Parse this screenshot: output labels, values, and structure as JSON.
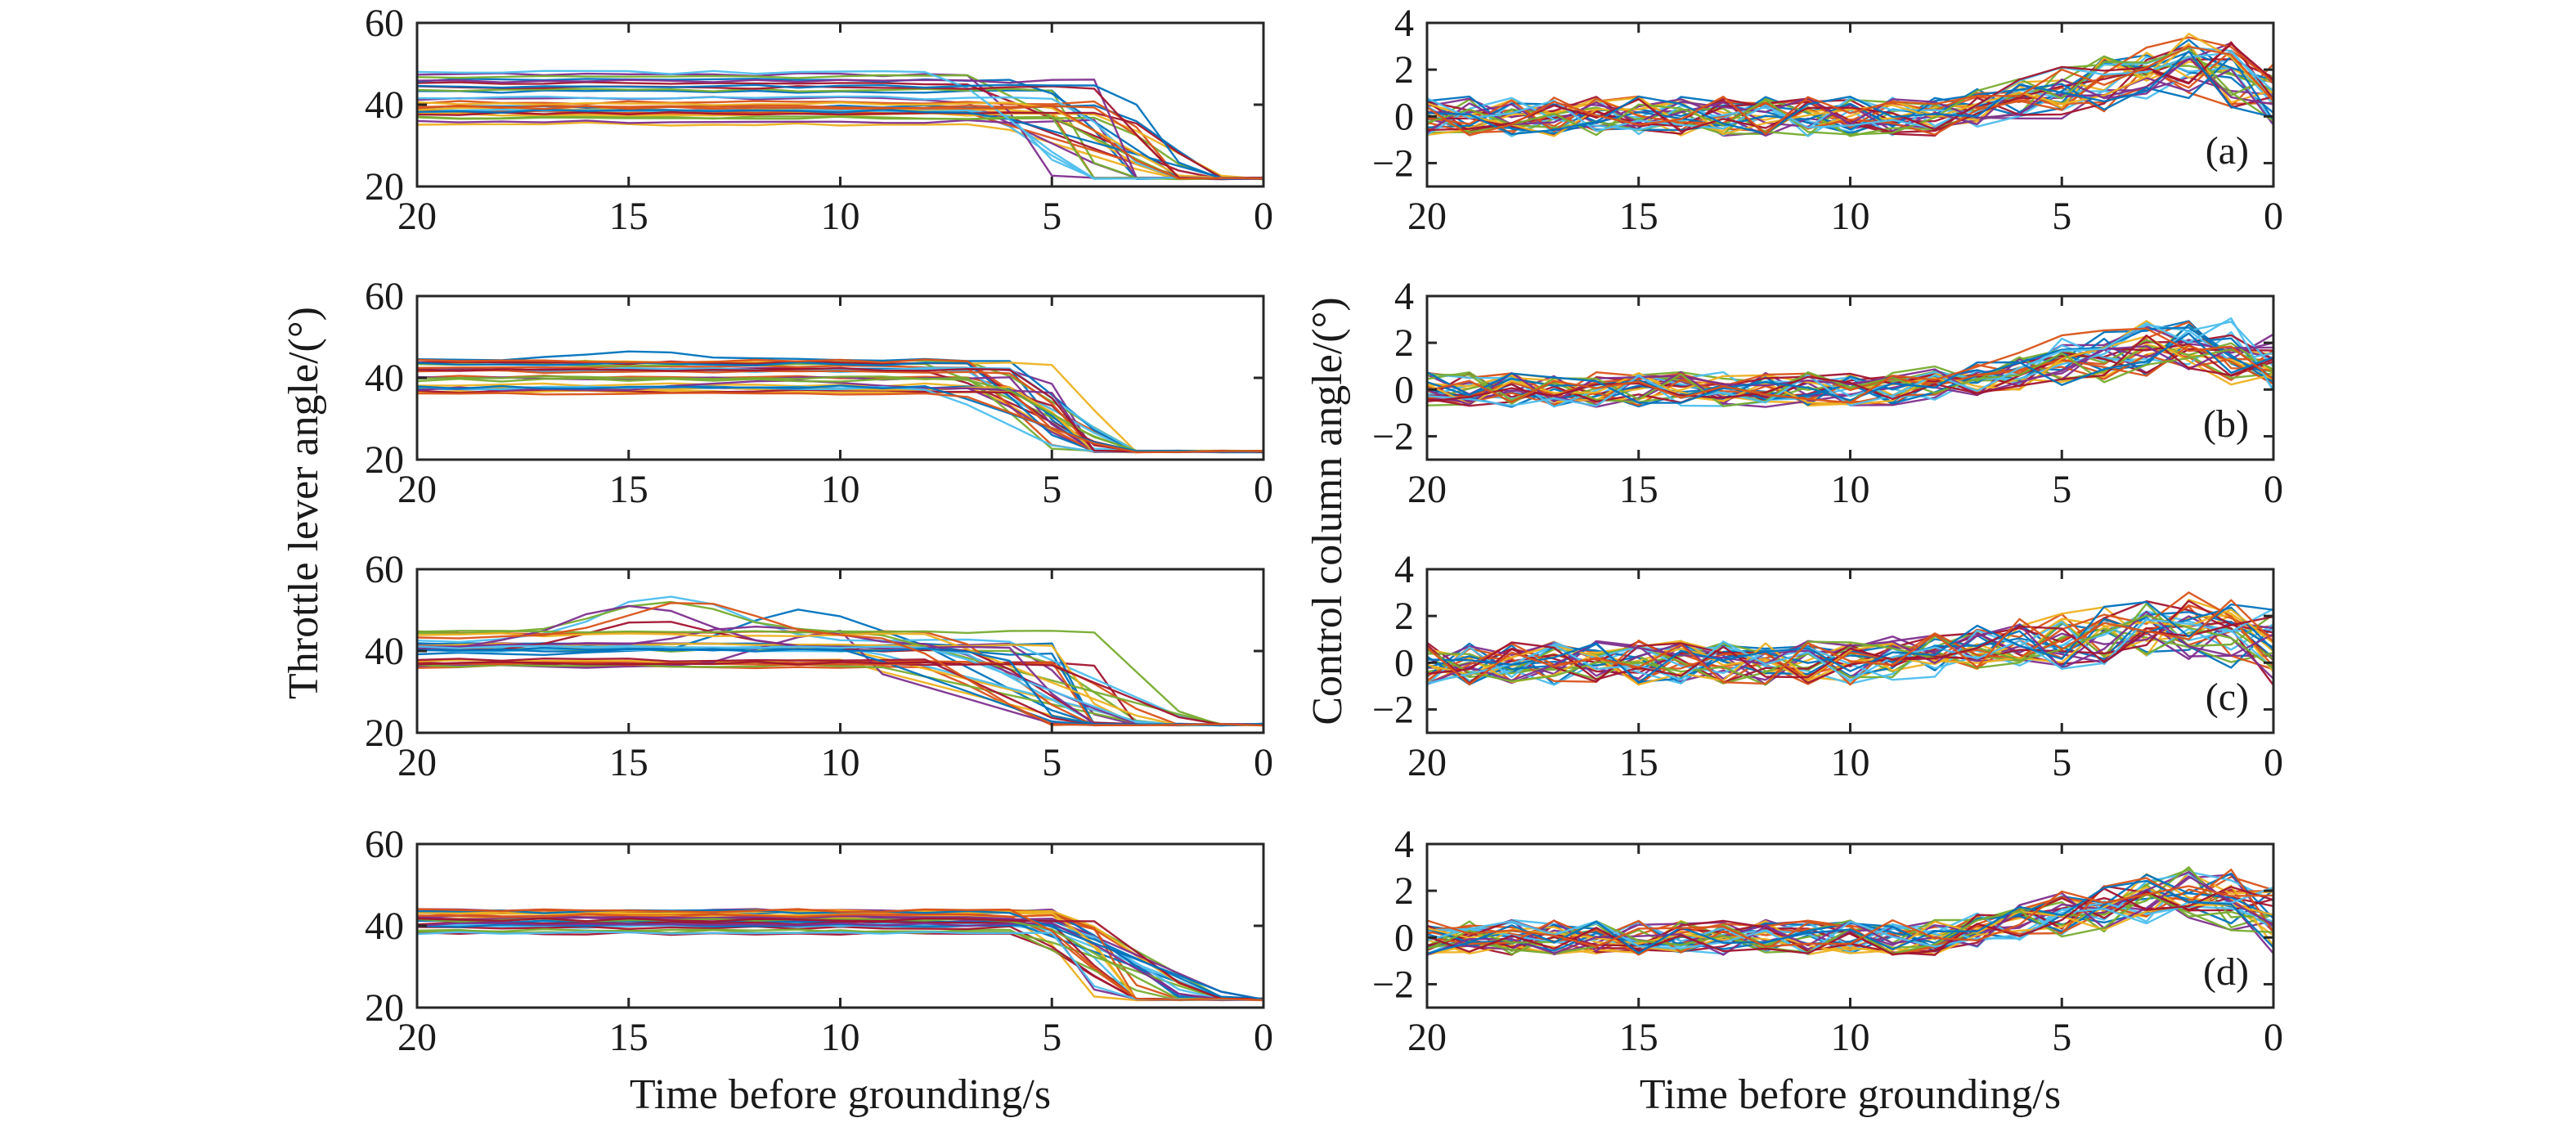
{
  "figure": {
    "left_ylabel": "Throttle lever angle/(°)",
    "right_ylabel": "Control column angle/(°)",
    "xlabel": "Time before grounding/s"
  },
  "chart_data": [
    {
      "id": "throttle-a",
      "type": "line",
      "xlim": [
        20,
        0
      ],
      "ylim": [
        20,
        60
      ],
      "xticks": [
        20,
        15,
        10,
        5,
        0
      ],
      "yticks": [
        20,
        40,
        60
      ],
      "n_series": 30,
      "baseline": [
        34,
        48
      ],
      "drop_start": [
        3,
        8
      ],
      "drop_end": [
        0.5,
        5
      ],
      "floor": 22,
      "bump_amp": 0,
      "panel_label": ""
    },
    {
      "id": "throttle-b",
      "type": "line",
      "xlim": [
        20,
        0
      ],
      "ylim": [
        20,
        60
      ],
      "xticks": [
        20,
        15,
        10,
        5,
        0
      ],
      "yticks": [
        20,
        40,
        60
      ],
      "n_series": 30,
      "baseline": [
        36,
        45
      ],
      "drop_start": [
        5,
        8
      ],
      "drop_end": [
        3,
        5
      ],
      "floor": 22,
      "bump_amp": 2,
      "panel_label": ""
    },
    {
      "id": "throttle-c",
      "type": "line",
      "xlim": [
        20,
        0
      ],
      "ylim": [
        20,
        60
      ],
      "xticks": [
        20,
        15,
        10,
        5,
        0
      ],
      "yticks": [
        20,
        40,
        60
      ],
      "n_series": 30,
      "baseline": [
        36,
        45
      ],
      "drop_start": [
        4,
        10
      ],
      "drop_end": [
        1,
        6
      ],
      "floor": 22,
      "bump_amp": 12,
      "panel_label": ""
    },
    {
      "id": "throttle-d",
      "type": "line",
      "xlim": [
        20,
        0
      ],
      "ylim": [
        20,
        60
      ],
      "xticks": [
        20,
        15,
        10,
        5,
        0
      ],
      "yticks": [
        20,
        40,
        60
      ],
      "n_series": 30,
      "baseline": [
        38,
        44
      ],
      "drop_start": [
        4,
        6
      ],
      "drop_end": [
        0.5,
        4
      ],
      "floor": 22,
      "bump_amp": 0,
      "panel_label": ""
    },
    {
      "id": "column-a",
      "type": "line",
      "xlim": [
        20,
        0
      ],
      "ylim": [
        -3,
        4
      ],
      "xticks": [
        20,
        15,
        10,
        5,
        0
      ],
      "yticks": [
        -2,
        0,
        2,
        4
      ],
      "n_series": 30,
      "noise": 0.85,
      "trend_start": 8,
      "trend_peak": 2.2,
      "panel_label": "(a)"
    },
    {
      "id": "column-b",
      "type": "line",
      "xlim": [
        20,
        0
      ],
      "ylim": [
        -3,
        4
      ],
      "xticks": [
        20,
        15,
        10,
        5,
        0
      ],
      "yticks": [
        -2,
        0,
        2,
        4
      ],
      "n_series": 30,
      "noise": 0.75,
      "trend_start": 9,
      "trend_peak": 2.0,
      "panel_label": "(b)"
    },
    {
      "id": "column-c",
      "type": "line",
      "xlim": [
        20,
        0
      ],
      "ylim": [
        -3,
        4
      ],
      "xticks": [
        20,
        15,
        10,
        5,
        0
      ],
      "yticks": [
        -2,
        0,
        2,
        4
      ],
      "n_series": 30,
      "noise": 0.95,
      "trend_start": 10,
      "trend_peak": 1.6,
      "panel_label": "(c)"
    },
    {
      "id": "column-d",
      "type": "line",
      "xlim": [
        20,
        0
      ],
      "ylim": [
        -3,
        4
      ],
      "xticks": [
        20,
        15,
        10,
        5,
        0
      ],
      "yticks": [
        -2,
        0,
        2,
        4
      ],
      "n_series": 30,
      "noise": 0.75,
      "trend_start": 8,
      "trend_peak": 2.0,
      "panel_label": "(d)"
    }
  ],
  "palette": [
    "#0072BD",
    "#D95319",
    "#EDB120",
    "#7E2F8E",
    "#77AC30",
    "#4DBEEE",
    "#A2142F"
  ]
}
